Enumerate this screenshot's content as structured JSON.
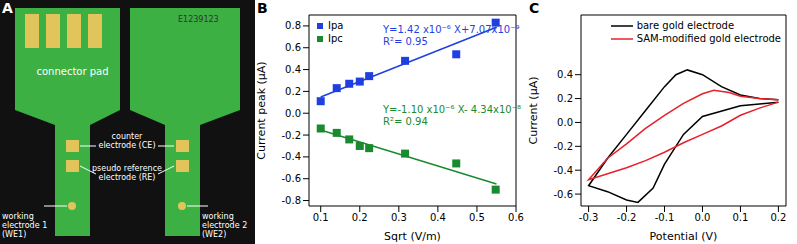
{
  "panel_a": {
    "label": "A",
    "board_text": "E1239123",
    "labels": {
      "connector": "connector pad",
      "ce": "counter electrode (CE)",
      "re": "pseudo reference electrode (RE)",
      "we1": "working electrode 1 (WE1)",
      "we2": "working electrode 2 (WE2)"
    }
  },
  "chart_data": [
    {
      "type": "scatter",
      "panel": "B",
      "x_label": "Sqrt (V/m)",
      "y_label": "Current peak (µA)",
      "xlim": [
        0.07,
        0.6
      ],
      "xticks": [
        0.1,
        0.2,
        0.3,
        0.4,
        0.5,
        0.6
      ],
      "ylim": [
        -0.85,
        0.9
      ],
      "yticks": [
        -0.8,
        -0.6,
        -0.4,
        -0.2,
        {
          "value": 0,
          "label": "0.0"
        },
        0.2,
        0.4,
        0.6,
        0.8
      ],
      "legend": "upper left",
      "series": [
        {
          "name": "Ipa",
          "color": "#1f3fe0",
          "marker": "square",
          "x": [
            0.1,
            0.141,
            0.173,
            0.2,
            0.224,
            0.316,
            0.447,
            0.548
          ],
          "values": [
            0.11,
            0.23,
            0.27,
            0.29,
            0.34,
            0.48,
            0.54,
            0.83
          ],
          "fit": {
            "x": [
              0.1,
              0.55
            ],
            "values": [
              0.149,
              0.788
            ]
          },
          "equation": "Y=1.42 x10⁻⁶ X+7.07x10⁻⁹",
          "r2": "R²= 0.95"
        },
        {
          "name": "Ipc",
          "color": "#1a8a2e",
          "marker": "square",
          "x": [
            0.1,
            0.141,
            0.173,
            0.2,
            0.224,
            0.316,
            0.447,
            0.548
          ],
          "values": [
            -0.14,
            -0.18,
            -0.24,
            -0.3,
            -0.32,
            -0.37,
            -0.46,
            -0.7
          ],
          "fit": {
            "x": [
              0.1,
              0.55
            ],
            "values": [
              -0.153,
              -0.648
            ]
          },
          "equation": "Y=-1.10 x10⁻⁶ X- 4.34x10⁻⁸",
          "r2": "R²= 0.94"
        }
      ]
    },
    {
      "type": "line",
      "panel": "C",
      "x_label": "Potential (V)",
      "y_label": "Current (µA)",
      "xlim": [
        -0.32,
        0.22
      ],
      "xticks": [
        -0.3,
        -0.2,
        -0.1,
        {
          "value": 0,
          "label": "0.0"
        },
        0.1,
        0.2
      ],
      "ylim": [
        -0.7,
        0.9
      ],
      "yticks": [
        -0.6,
        -0.4,
        -0.2,
        {
          "value": 0,
          "label": "0.0"
        },
        0.2,
        0.4
      ],
      "legend": "upper right",
      "series": [
        {
          "name": "bare gold electrode",
          "color": "#000000",
          "x": [
            0.2,
            0.1,
            0.0,
            -0.05,
            -0.1,
            -0.13,
            -0.17,
            -0.2,
            -0.25,
            -0.3,
            -0.25,
            -0.2,
            -0.15,
            -0.1,
            -0.07,
            -0.04,
            0.0,
            0.05,
            0.1,
            0.15,
            0.2
          ],
          "values": [
            0.17,
            0.14,
            0.05,
            -0.1,
            -0.35,
            -0.55,
            -0.67,
            -0.65,
            -0.58,
            -0.53,
            -0.3,
            -0.1,
            0.1,
            0.3,
            0.4,
            0.44,
            0.4,
            0.3,
            0.23,
            0.2,
            0.19
          ]
        },
        {
          "name": "SAM-modified gold electrode",
          "color": "#e8202a",
          "x": [
            0.2,
            0.15,
            0.1,
            0.05,
            0.0,
            -0.05,
            -0.1,
            -0.15,
            -0.2,
            -0.25,
            -0.3,
            -0.25,
            -0.2,
            -0.15,
            -0.1,
            -0.05,
            0.0,
            0.03,
            0.07,
            0.1,
            0.15,
            0.2
          ],
          "values": [
            0.17,
            0.12,
            0.06,
            -0.03,
            -0.1,
            -0.17,
            -0.25,
            -0.32,
            -0.38,
            -0.43,
            -0.48,
            -0.3,
            -0.18,
            -0.05,
            0.06,
            0.16,
            0.24,
            0.27,
            0.25,
            0.22,
            0.2,
            0.19
          ]
        }
      ]
    }
  ]
}
